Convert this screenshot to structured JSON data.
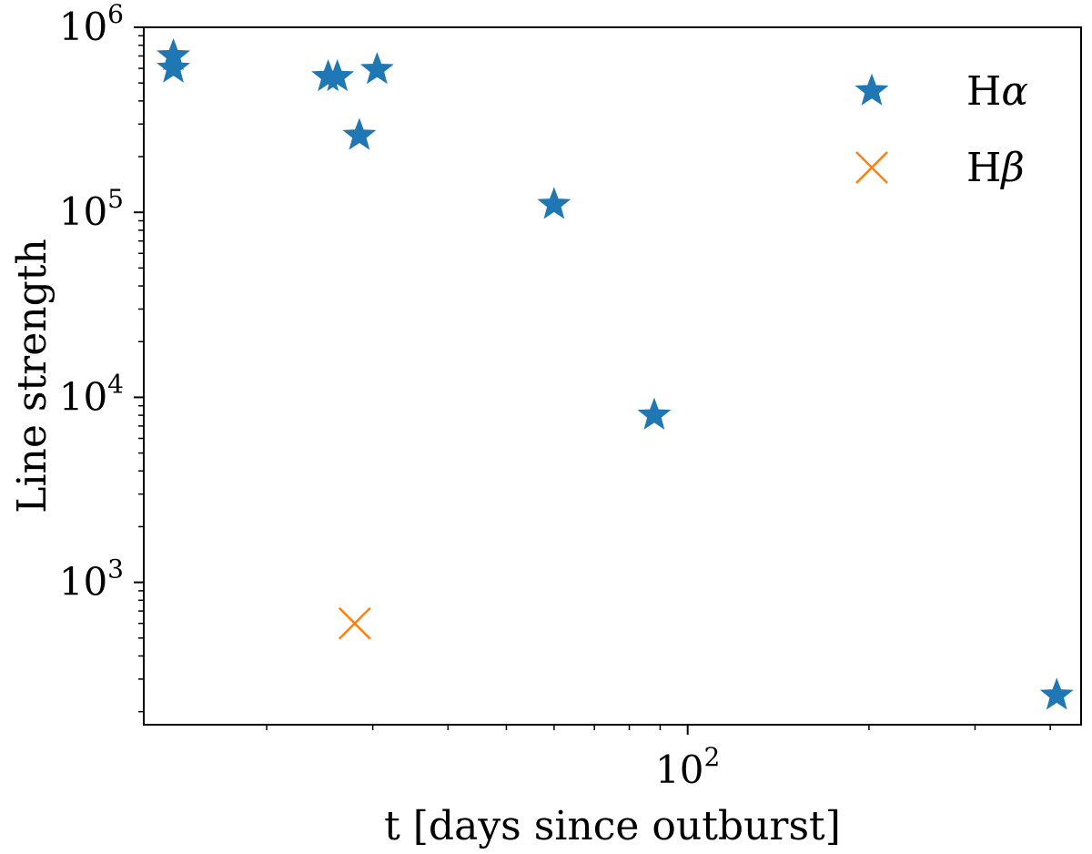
{
  "chart_data": {
    "type": "scatter",
    "xlabel": "t [days since outburst]",
    "ylabel": "Line strength",
    "x_scale": "log",
    "y_scale": "log",
    "xlim": [
      12.5,
      450
    ],
    "ylim": [
      170,
      1000000
    ],
    "x_ticks": [
      {
        "value": 100,
        "base": "10",
        "exp": "2"
      }
    ],
    "y_ticks": [
      {
        "value": 1000,
        "base": "10",
        "exp": "3"
      },
      {
        "value": 10000,
        "base": "10",
        "exp": "4"
      },
      {
        "value": 100000,
        "base": "10",
        "exp": "5"
      },
      {
        "value": 1000000,
        "base": "10",
        "exp": "6"
      }
    ],
    "legend_position": "top-right",
    "series": [
      {
        "name": "Hα",
        "name_main": "H",
        "name_greek": "α",
        "marker": "star",
        "color": "#1f77b4",
        "points": [
          {
            "x": 14.0,
            "y": 700000
          },
          {
            "x": 14.0,
            "y": 600000
          },
          {
            "x": 25.3,
            "y": 540000
          },
          {
            "x": 26.2,
            "y": 540000
          },
          {
            "x": 28.5,
            "y": 260000
          },
          {
            "x": 30.5,
            "y": 590000
          },
          {
            "x": 60.0,
            "y": 110000
          },
          {
            "x": 88.0,
            "y": 8000
          },
          {
            "x": 410.0,
            "y": 245
          }
        ]
      },
      {
        "name": "Hβ",
        "name_main": "H",
        "name_greek": "β",
        "marker": "x",
        "color": "#ff7f0e",
        "points": [
          {
            "x": 28.0,
            "y": 600
          }
        ]
      }
    ]
  }
}
